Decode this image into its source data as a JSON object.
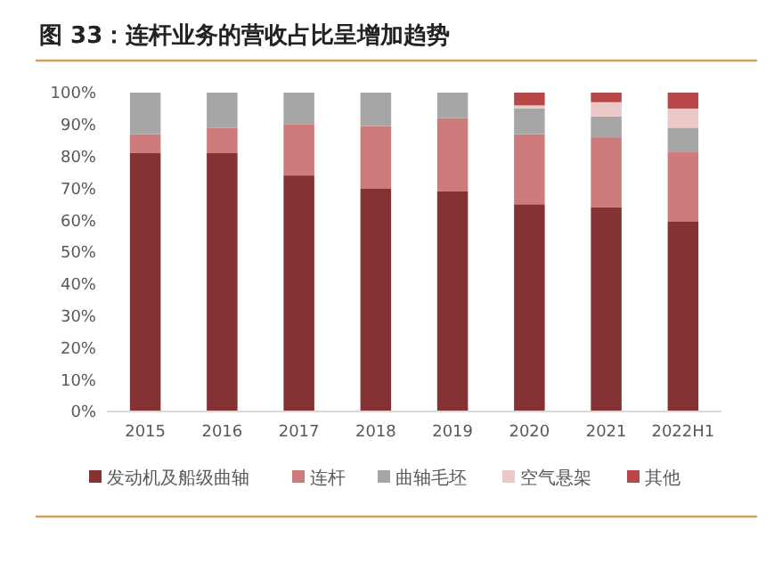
{
  "chart_data": {
    "type": "bar",
    "stacked": true,
    "title": "图 33：连杆业务的营收占比呈增加趋势",
    "categories": [
      "2015",
      "2016",
      "2017",
      "2018",
      "2019",
      "2020",
      "2021",
      "2022H1"
    ],
    "series": [
      {
        "name": "发动机及船级曲轴",
        "color": "#843234",
        "values": [
          81,
          81,
          74,
          70,
          69,
          65,
          64,
          59.5
        ]
      },
      {
        "name": "连杆",
        "color": "#cd7b7b",
        "values": [
          6,
          8,
          16,
          19.5,
          23,
          22,
          22,
          22
        ]
      },
      {
        "name": "曲轴毛坯",
        "color": "#a6a6a6",
        "values": [
          13,
          11,
          10,
          10.5,
          8,
          8,
          6.5,
          7.5
        ]
      },
      {
        "name": "空气悬架",
        "color": "#ecc8c8",
        "values": [
          0,
          0,
          0,
          0,
          0,
          1,
          4.5,
          6
        ]
      },
      {
        "name": "其他",
        "color": "#b84848",
        "values": [
          0,
          0,
          0,
          0,
          0,
          4,
          3,
          5
        ]
      }
    ],
    "ylim": [
      0,
      100
    ],
    "yticks": [
      {
        "value": 0,
        "label": "0%"
      },
      {
        "value": 10,
        "label": "10%"
      },
      {
        "value": 20,
        "label": "20%"
      },
      {
        "value": 30,
        "label": "30%"
      },
      {
        "value": 40,
        "label": "40%"
      },
      {
        "value": 50,
        "label": "50%"
      },
      {
        "value": 60,
        "label": "60%"
      },
      {
        "value": 70,
        "label": "70%"
      },
      {
        "value": 80,
        "label": "80%"
      },
      {
        "value": 90,
        "label": "90%"
      },
      {
        "value": 100,
        "label": "100%"
      }
    ],
    "grid": false,
    "legend": "bottom"
  }
}
